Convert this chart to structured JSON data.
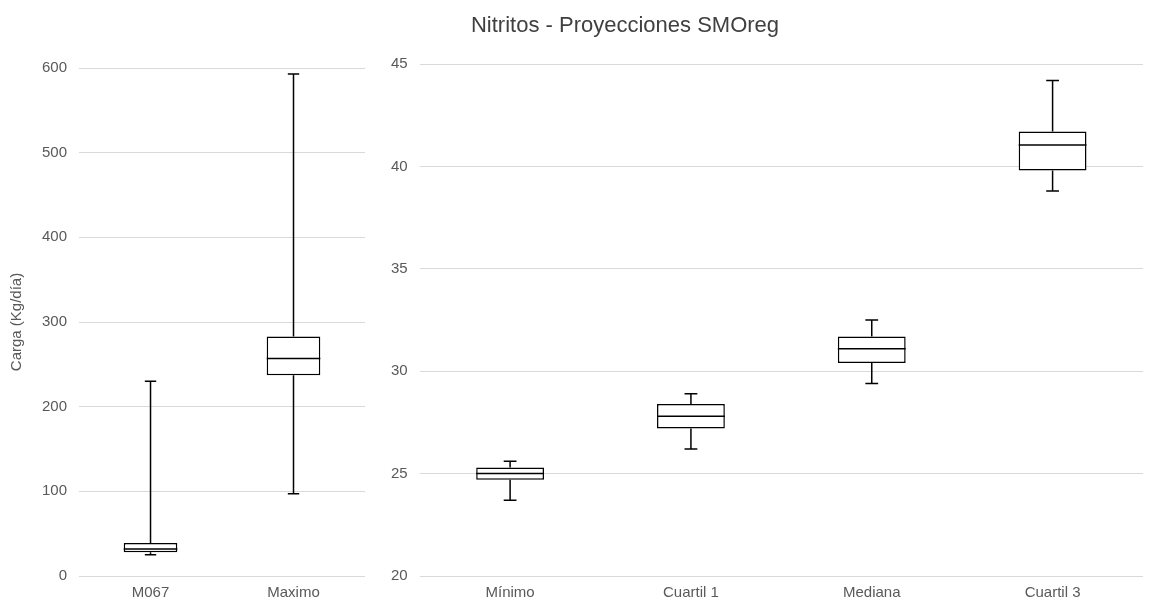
{
  "chart_data": [
    {
      "type": "box",
      "ylabel": "Carga (Kg/día)",
      "categories": [
        "M067",
        "Maximo"
      ],
      "boxes": [
        {
          "low": 25,
          "q1": 28,
          "median": 32,
          "q3": 39,
          "high": 230
        },
        {
          "low": 97,
          "q1": 237,
          "median": 257,
          "q3": 283,
          "high": 593
        }
      ],
      "ylim": [
        0,
        600
      ],
      "yticks": [
        0,
        100,
        200,
        300,
        400,
        500,
        600
      ],
      "grid": "y"
    },
    {
      "type": "box",
      "title": "Nitritos - Proyecciones SMOreg",
      "categories": [
        "Mínimo",
        "Cuartil 1",
        "Mediana",
        "Cuartil 3"
      ],
      "boxes": [
        {
          "low": 23.7,
          "q1": 24.7,
          "median": 25.0,
          "q3": 25.3,
          "high": 25.6
        },
        {
          "low": 26.2,
          "q1": 27.2,
          "median": 27.8,
          "q3": 28.4,
          "high": 28.9
        },
        {
          "low": 29.4,
          "q1": 30.4,
          "median": 31.1,
          "q3": 31.7,
          "high": 32.5
        },
        {
          "low": 38.8,
          "q1": 39.8,
          "median": 41.05,
          "q3": 41.7,
          "high": 44.2
        }
      ],
      "ylim": [
        20,
        45
      ],
      "yticks": [
        20,
        25,
        30,
        35,
        40,
        45
      ],
      "grid": "y"
    }
  ]
}
